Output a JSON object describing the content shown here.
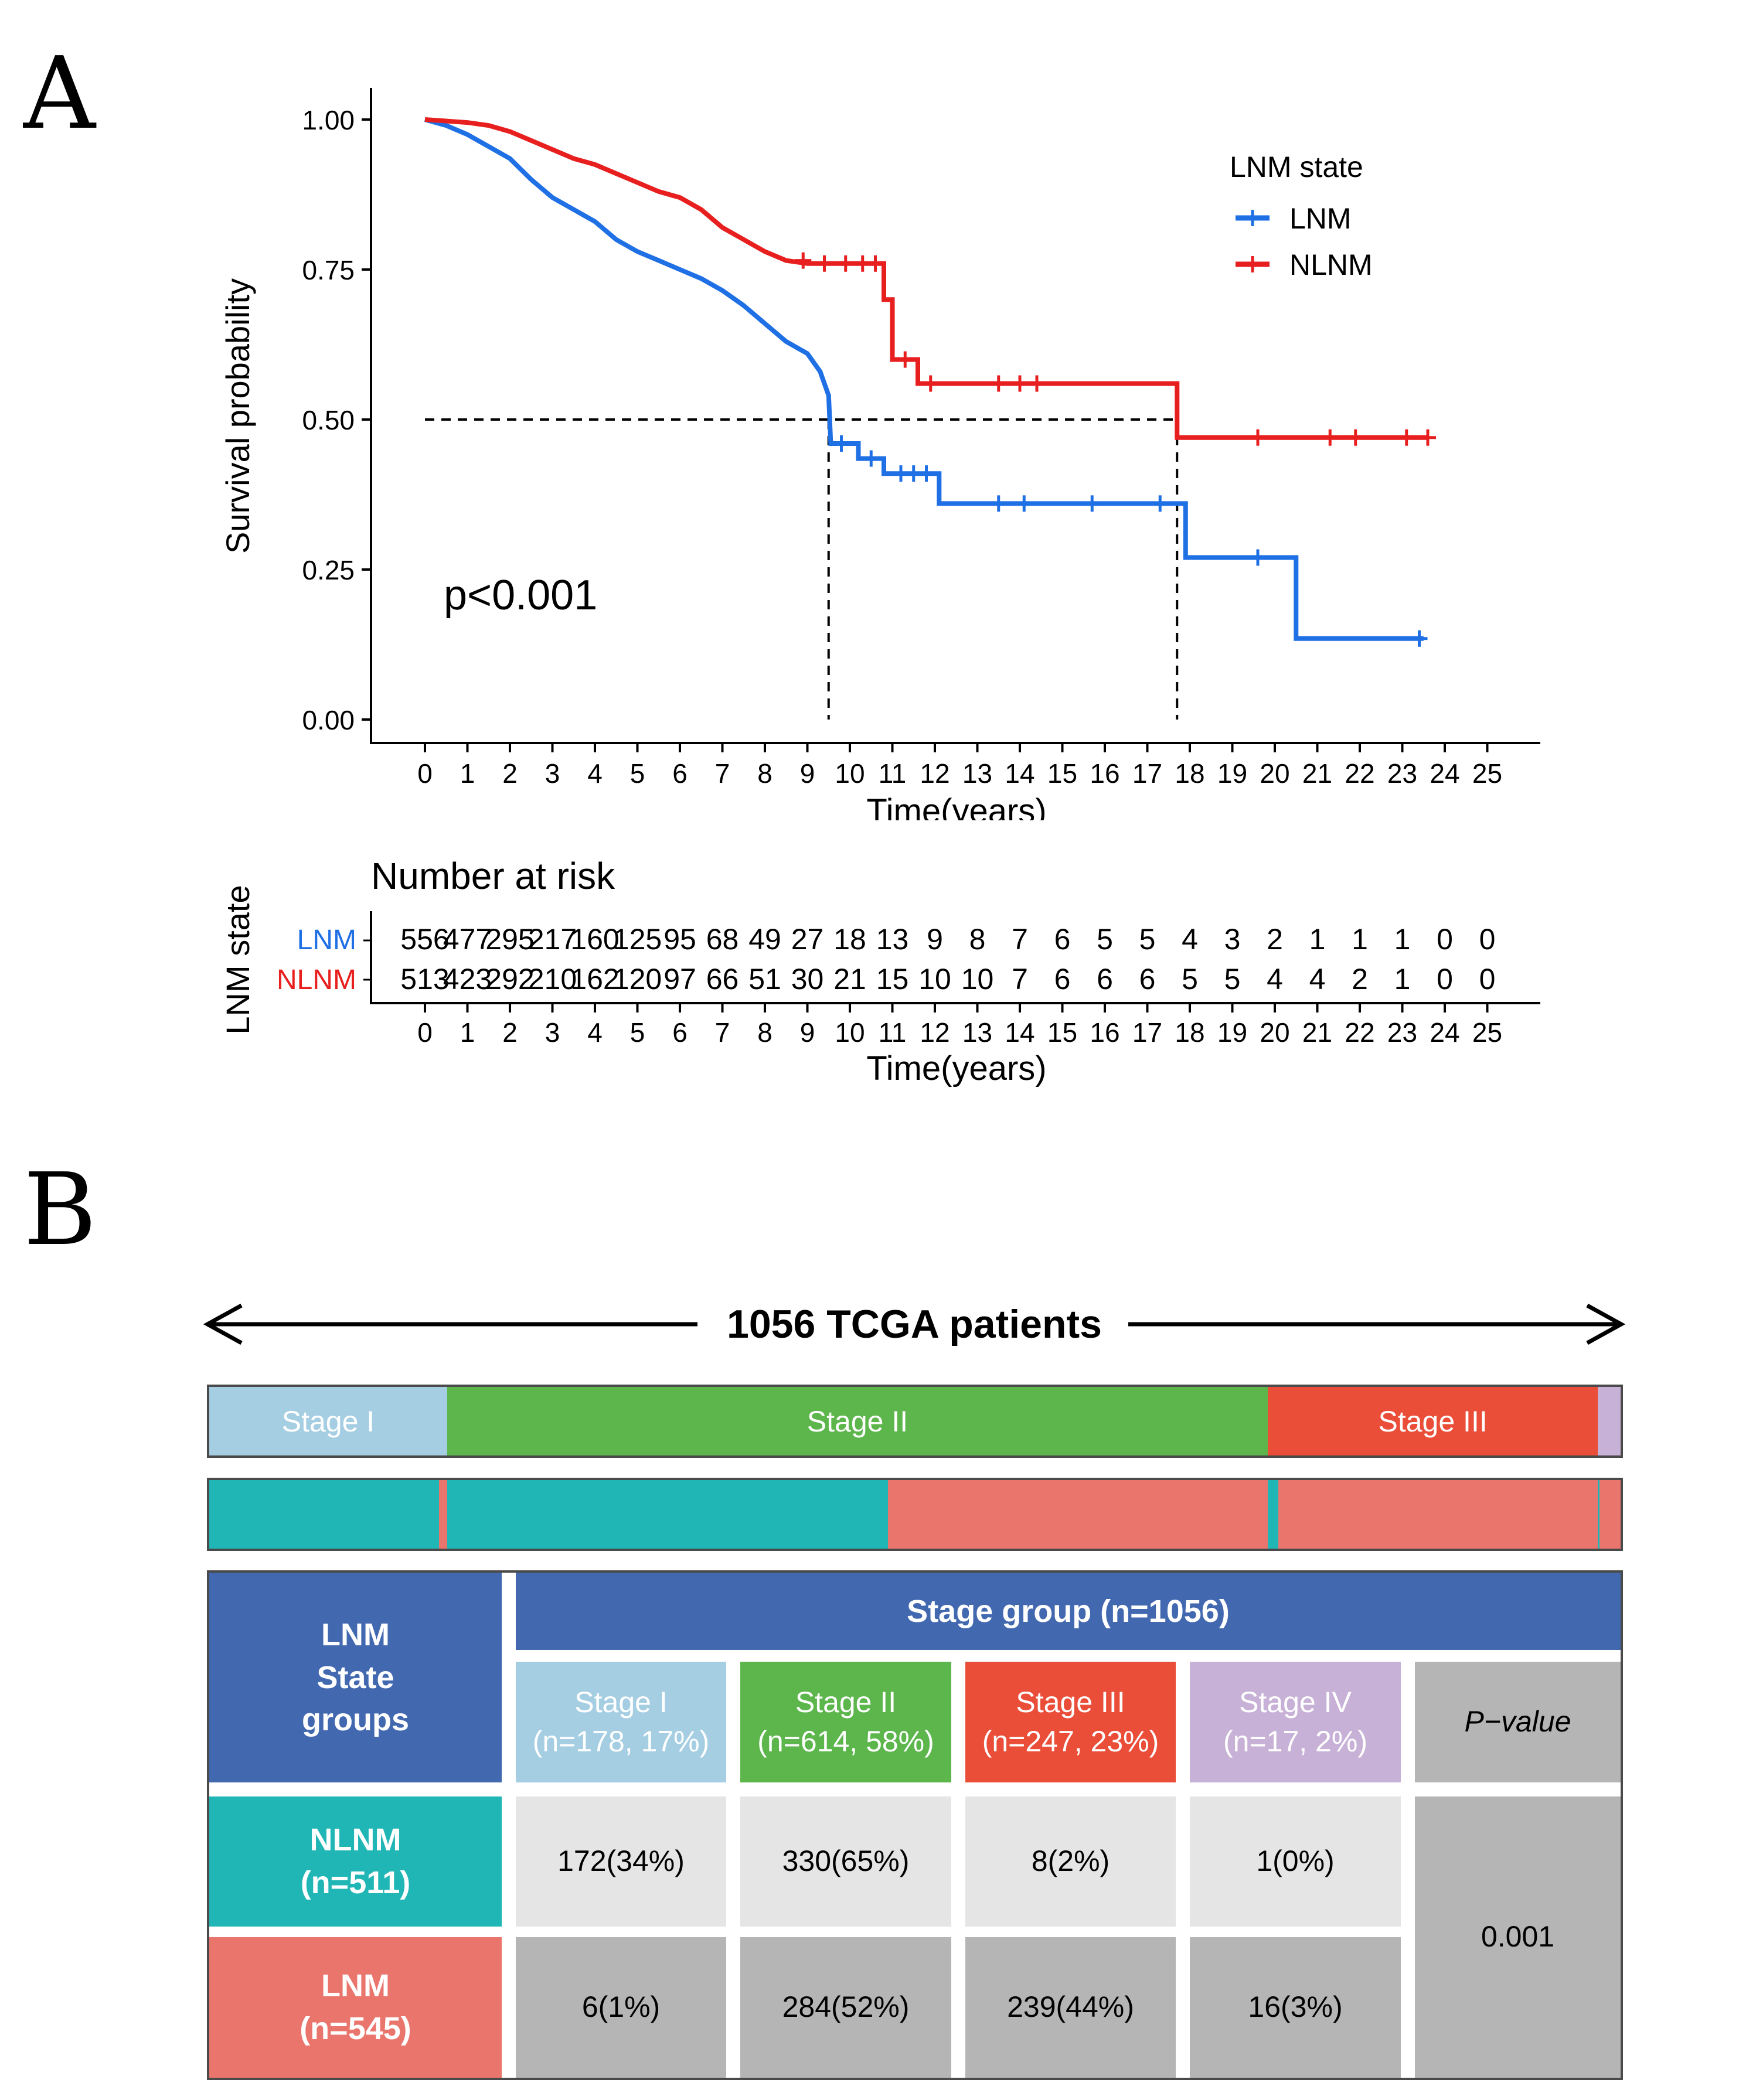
{
  "panel_labels": {
    "a": "A",
    "b": "B"
  },
  "chart_data": [
    {
      "type": "line",
      "subtype": "kaplan-meier",
      "xlabel": "Time(years)",
      "ylabel": "Survival probability",
      "xlim": [
        0,
        25
      ],
      "ylim": [
        0,
        1
      ],
      "x_ticks": [
        "0",
        "1",
        "2",
        "3",
        "4",
        "5",
        "6",
        "7",
        "8",
        "9",
        "10",
        "11",
        "12",
        "13",
        "14",
        "15",
        "16",
        "17",
        "18",
        "19",
        "20",
        "21",
        "22",
        "23",
        "24",
        "25"
      ],
      "y_ticks": [
        "0.00",
        "0.25",
        "0.50",
        "0.75",
        "1.00"
      ],
      "legend_title": "LNM state",
      "legend_position": "top-right",
      "annotation": "p<0.001",
      "median_survival": [
        9.5,
        17.7
      ],
      "series": [
        {
          "name": "LNM",
          "color": "#1f6fe5",
          "points": [
            [
              0,
              1.0
            ],
            [
              0.5,
              0.99
            ],
            [
              1,
              0.975
            ],
            [
              1.5,
              0.955
            ],
            [
              2,
              0.935
            ],
            [
              2.5,
              0.9
            ],
            [
              3,
              0.87
            ],
            [
              3.5,
              0.85
            ],
            [
              4,
              0.83
            ],
            [
              4.5,
              0.8
            ],
            [
              5,
              0.78
            ],
            [
              5.5,
              0.765
            ],
            [
              6,
              0.75
            ],
            [
              6.5,
              0.735
            ],
            [
              7,
              0.715
            ],
            [
              7.5,
              0.69
            ],
            [
              8,
              0.66
            ],
            [
              8.5,
              0.63
            ],
            [
              9,
              0.61
            ],
            [
              9.3,
              0.58
            ],
            [
              9.5,
              0.54
            ],
            [
              9.55,
              0.46
            ],
            [
              10.2,
              0.46
            ],
            [
              10.2,
              0.435
            ],
            [
              10.8,
              0.435
            ],
            [
              10.8,
              0.41
            ],
            [
              12.1,
              0.41
            ],
            [
              12.1,
              0.36
            ],
            [
              17.9,
              0.36
            ],
            [
              17.9,
              0.27
            ],
            [
              20.5,
              0.27
            ],
            [
              20.5,
              0.135
            ],
            [
              23.5,
              0.135
            ]
          ],
          "censor_x": [
            9.8,
            10.5,
            11.2,
            11.5,
            11.8,
            13.5,
            14.1,
            15.7,
            17.3,
            19.6,
            23.4
          ]
        },
        {
          "name": "NLNM",
          "color": "#e81f1f",
          "points": [
            [
              0,
              1.0
            ],
            [
              1,
              0.995
            ],
            [
              1.5,
              0.99
            ],
            [
              2,
              0.98
            ],
            [
              2.5,
              0.965
            ],
            [
              3,
              0.95
            ],
            [
              3.5,
              0.935
            ],
            [
              4,
              0.925
            ],
            [
              4.5,
              0.91
            ],
            [
              5,
              0.895
            ],
            [
              5.5,
              0.88
            ],
            [
              6,
              0.87
            ],
            [
              6.5,
              0.85
            ],
            [
              7,
              0.82
            ],
            [
              7.5,
              0.8
            ],
            [
              8,
              0.78
            ],
            [
              8.5,
              0.765
            ],
            [
              9,
              0.76
            ],
            [
              10.8,
              0.76
            ],
            [
              10.8,
              0.7
            ],
            [
              11,
              0.7
            ],
            [
              11,
              0.6
            ],
            [
              11.6,
              0.6
            ],
            [
              11.6,
              0.56
            ],
            [
              17.7,
              0.56
            ],
            [
              17.7,
              0.47
            ],
            [
              23.6,
              0.47
            ]
          ],
          "censor_x": [
            8.9,
            9.4,
            9.9,
            10.3,
            10.6,
            11.3,
            11.9,
            13.5,
            14.0,
            14.4,
            19.6,
            21.3,
            21.9,
            23.1,
            23.6
          ]
        }
      ]
    },
    {
      "type": "table",
      "title": "Number at risk",
      "ylabel": "LNM state",
      "xlabel": "Time(years)",
      "columns": [
        "0",
        "1",
        "2",
        "3",
        "4",
        "5",
        "6",
        "7",
        "8",
        "9",
        "10",
        "11",
        "12",
        "13",
        "14",
        "15",
        "16",
        "17",
        "18",
        "19",
        "20",
        "21",
        "22",
        "23",
        "24",
        "25"
      ],
      "rows": [
        {
          "name": "LNM",
          "color": "#1f6fe5",
          "values": [
            "556",
            "477",
            "295",
            "217",
            "160",
            "125",
            "95",
            "68",
            "49",
            "27",
            "18",
            "13",
            "9",
            "8",
            "7",
            "6",
            "5",
            "5",
            "4",
            "3",
            "2",
            "1",
            "1",
            "1",
            "0",
            "0"
          ]
        },
        {
          "name": "NLNM",
          "color": "#e81f1f",
          "values": [
            "513",
            "423",
            "292",
            "210",
            "162",
            "120",
            "97",
            "66",
            "51",
            "30",
            "21",
            "15",
            "10",
            "10",
            "7",
            "6",
            "6",
            "6",
            "5",
            "5",
            "4",
            "4",
            "2",
            "1",
            "0",
            "0"
          ]
        }
      ]
    },
    {
      "type": "bar",
      "title": "1056 TCGA patients",
      "stage_bar": [
        {
          "label": "Stage I",
          "value": 178,
          "color": "#a6cee3"
        },
        {
          "label": "Stage II",
          "value": 614,
          "color": "#5cb64c"
        },
        {
          "label": "Stage III",
          "value": 247,
          "color": "#ea4e39"
        },
        {
          "label": "Stage IV",
          "value": 17,
          "color": "#c8b1d6"
        }
      ],
      "lnm_bar": [
        {
          "group": "NLNM",
          "value": 172,
          "color": "#20b6b6"
        },
        {
          "group": "LNM",
          "value": 6,
          "color": "#ea756c"
        },
        {
          "group": "NLNM",
          "value": 330,
          "color": "#20b6b6"
        },
        {
          "group": "LNM",
          "value": 284,
          "color": "#ea756c"
        },
        {
          "group": "NLNM",
          "value": 8,
          "color": "#20b6b6"
        },
        {
          "group": "LNM",
          "value": 239,
          "color": "#ea756c"
        },
        {
          "group": "NLNM",
          "value": 1,
          "color": "#20b6b6"
        },
        {
          "group": "LNM",
          "value": 16,
          "color": "#ea756c"
        }
      ]
    },
    {
      "type": "table",
      "header_group": "Stage group (n=1056)",
      "row_header": "LNM State groups",
      "row_header_color": "#4268b0",
      "columns": [
        {
          "title": "Stage I",
          "sub": "(n=178, 17%)",
          "color": "#a6cee3"
        },
        {
          "title": "Stage II",
          "sub": "(n=614, 58%)",
          "color": "#5cb64c"
        },
        {
          "title": "Stage III",
          "sub": "(n=247, 23%)",
          "color": "#ea4e39"
        },
        {
          "title": "Stage IV",
          "sub": "(n=17, 2%)",
          "color": "#c8b1d6"
        }
      ],
      "pvalue_label": "P−value",
      "pvalue": "0.001",
      "rows": [
        {
          "title": "NLNM",
          "sub": "(n=511)",
          "color": "#20b6b6",
          "cells": [
            "172(34%)",
            "330(65%)",
            "8(2%)",
            "1(0%)"
          ]
        },
        {
          "title": "LNM",
          "sub": "(n=545)",
          "color": "#ea756c",
          "cells": [
            "6(1%)",
            "284(52%)",
            "239(44%)",
            "16(3%)"
          ]
        }
      ]
    }
  ]
}
